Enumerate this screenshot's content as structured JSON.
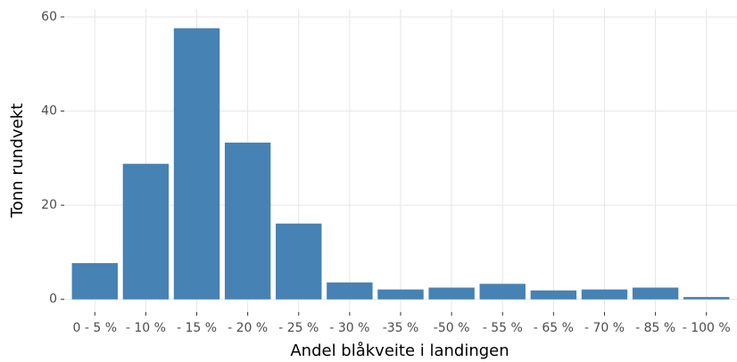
{
  "chart_data": {
    "type": "bar",
    "x_label": "Andel blåkveite i landingen",
    "y_label": "Tonn rundvekt",
    "categories": [
      "0 - 5 %",
      "- 10 %",
      "- 15 %",
      "- 20 %",
      "- 25 %",
      "- 30 %",
      "-35 %",
      "-50 %",
      "- 55 %",
      "- 65 %",
      "- 70 %",
      "- 85 %",
      "- 100 %"
    ],
    "values": [
      7.7,
      28.8,
      57.6,
      33.3,
      16.1,
      3.6,
      2.1,
      2.5,
      3.3,
      1.9,
      2.1,
      2.5,
      0.5
    ],
    "color": "#4682b4",
    "ylim": [
      -2.7,
      61.7
    ],
    "yticks": [
      0,
      20,
      40,
      60
    ],
    "grid": true
  }
}
